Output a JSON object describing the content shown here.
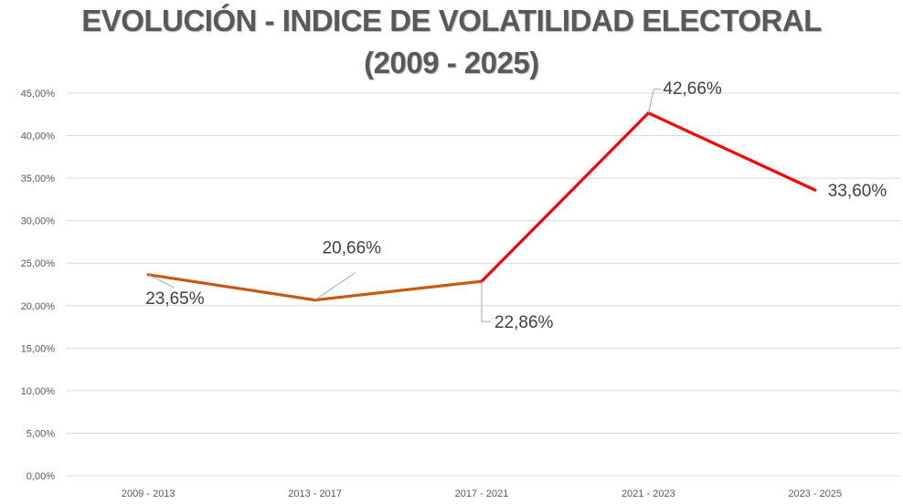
{
  "chart_data": {
    "type": "line",
    "title": "EVOLUCIÓN - INDICE DE VOLATILIDAD ELECTORAL",
    "subtitle": "(2009 - 2025)",
    "xlabel": "",
    "ylabel": "",
    "categories": [
      "2009 - 2013",
      "2013 - 2017",
      "2017 - 2021",
      "2021 -  2023",
      "2023 - 2025"
    ],
    "series": [
      {
        "name": "Índice de volatilidad electoral",
        "values": [
          23.65,
          20.66,
          22.86,
          42.66,
          33.6
        ],
        "data_labels": [
          "23,65%",
          "20,66%",
          "22,86%",
          "42,66%",
          "33,60%"
        ],
        "segment_colors": [
          "#c55a11",
          "#c55a11",
          "#ff0000",
          "#ff0000"
        ]
      }
    ],
    "ylim": [
      0,
      45
    ],
    "yticks": [
      0,
      5,
      10,
      15,
      20,
      25,
      30,
      35,
      40,
      45
    ],
    "ytick_labels": [
      "0,00%",
      "5,00%",
      "10,00%",
      "15,00%",
      "20,00%",
      "25,00%",
      "30,00%",
      "35,00%",
      "40,00%",
      "45,00%"
    ],
    "grid": true,
    "legend": "none"
  }
}
